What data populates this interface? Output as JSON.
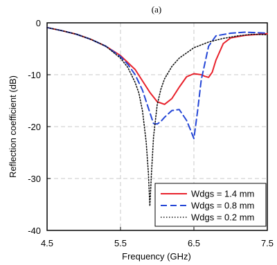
{
  "chart_data": {
    "type": "line",
    "title": "(a)",
    "xlabel": "Frequency (GHz)",
    "ylabel": "Reflection coefficient (dB)",
    "xlim": [
      4.5,
      7.5
    ],
    "ylim": [
      -40,
      0
    ],
    "xticks": [
      4.5,
      5.5,
      6.5,
      7.5
    ],
    "xtick_labels": [
      "4.5",
      "5.5",
      "6.5",
      "7.5"
    ],
    "yticks": [
      0,
      -10,
      -20,
      -30,
      -40
    ],
    "ytick_labels": [
      "0",
      "-10",
      "-20",
      "-30",
      "-40"
    ],
    "grid": true,
    "legend_position": "bottom-right",
    "series": [
      {
        "name": "Wdgs = 1.4 mm",
        "color": "#e8202a",
        "style": "solid",
        "x": [
          4.5,
          4.7,
          4.9,
          5.1,
          5.3,
          5.5,
          5.7,
          5.8,
          5.9,
          6.0,
          6.1,
          6.2,
          6.3,
          6.4,
          6.5,
          6.6,
          6.65,
          6.7,
          6.75,
          6.8,
          6.9,
          7.0,
          7.2,
          7.4,
          7.5
        ],
        "y": [
          -0.9,
          -1.5,
          -2.2,
          -3.2,
          -4.5,
          -6.3,
          -9.0,
          -11.2,
          -13.4,
          -15.2,
          -15.7,
          -14.6,
          -12.4,
          -10.4,
          -9.8,
          -10.0,
          -10.3,
          -10.5,
          -9.5,
          -7.2,
          -4.0,
          -2.9,
          -2.4,
          -2.2,
          -2.1
        ]
      },
      {
        "name": "Wdgs = 0.8 mm",
        "color": "#2345d6",
        "style": "dashed",
        "x": [
          4.5,
          4.7,
          4.9,
          5.1,
          5.3,
          5.5,
          5.6,
          5.7,
          5.8,
          5.9,
          5.95,
          6.0,
          6.05,
          6.1,
          6.2,
          6.3,
          6.4,
          6.45,
          6.5,
          6.55,
          6.6,
          6.7,
          6.8,
          7.0,
          7.2,
          7.5
        ],
        "y": [
          -0.9,
          -1.5,
          -2.2,
          -3.2,
          -4.5,
          -6.5,
          -8.0,
          -10.0,
          -13.0,
          -17.3,
          -19.4,
          -19.5,
          -19.0,
          -18.2,
          -16.9,
          -16.7,
          -18.8,
          -20.5,
          -22.3,
          -17.0,
          -11.0,
          -4.5,
          -2.5,
          -2.0,
          -1.8,
          -2.0
        ]
      },
      {
        "name": "Wdgs = 0.2 mm",
        "color": "#111111",
        "style": "dotted",
        "x": [
          4.5,
          4.7,
          4.9,
          5.1,
          5.3,
          5.5,
          5.6,
          5.7,
          5.75,
          5.8,
          5.85,
          5.88,
          5.9,
          5.92,
          5.95,
          6.0,
          6.05,
          6.1,
          6.2,
          6.3,
          6.5,
          6.7,
          6.9,
          7.1,
          7.3,
          7.5
        ],
        "y": [
          -0.9,
          -1.5,
          -2.2,
          -3.2,
          -4.5,
          -6.8,
          -8.6,
          -11.5,
          -13.5,
          -17.0,
          -23.0,
          -29.0,
          -35.3,
          -29.5,
          -22.0,
          -15.8,
          -12.8,
          -10.8,
          -8.4,
          -6.8,
          -4.8,
          -3.7,
          -3.0,
          -2.5,
          -2.2,
          -2.3
        ]
      }
    ]
  }
}
